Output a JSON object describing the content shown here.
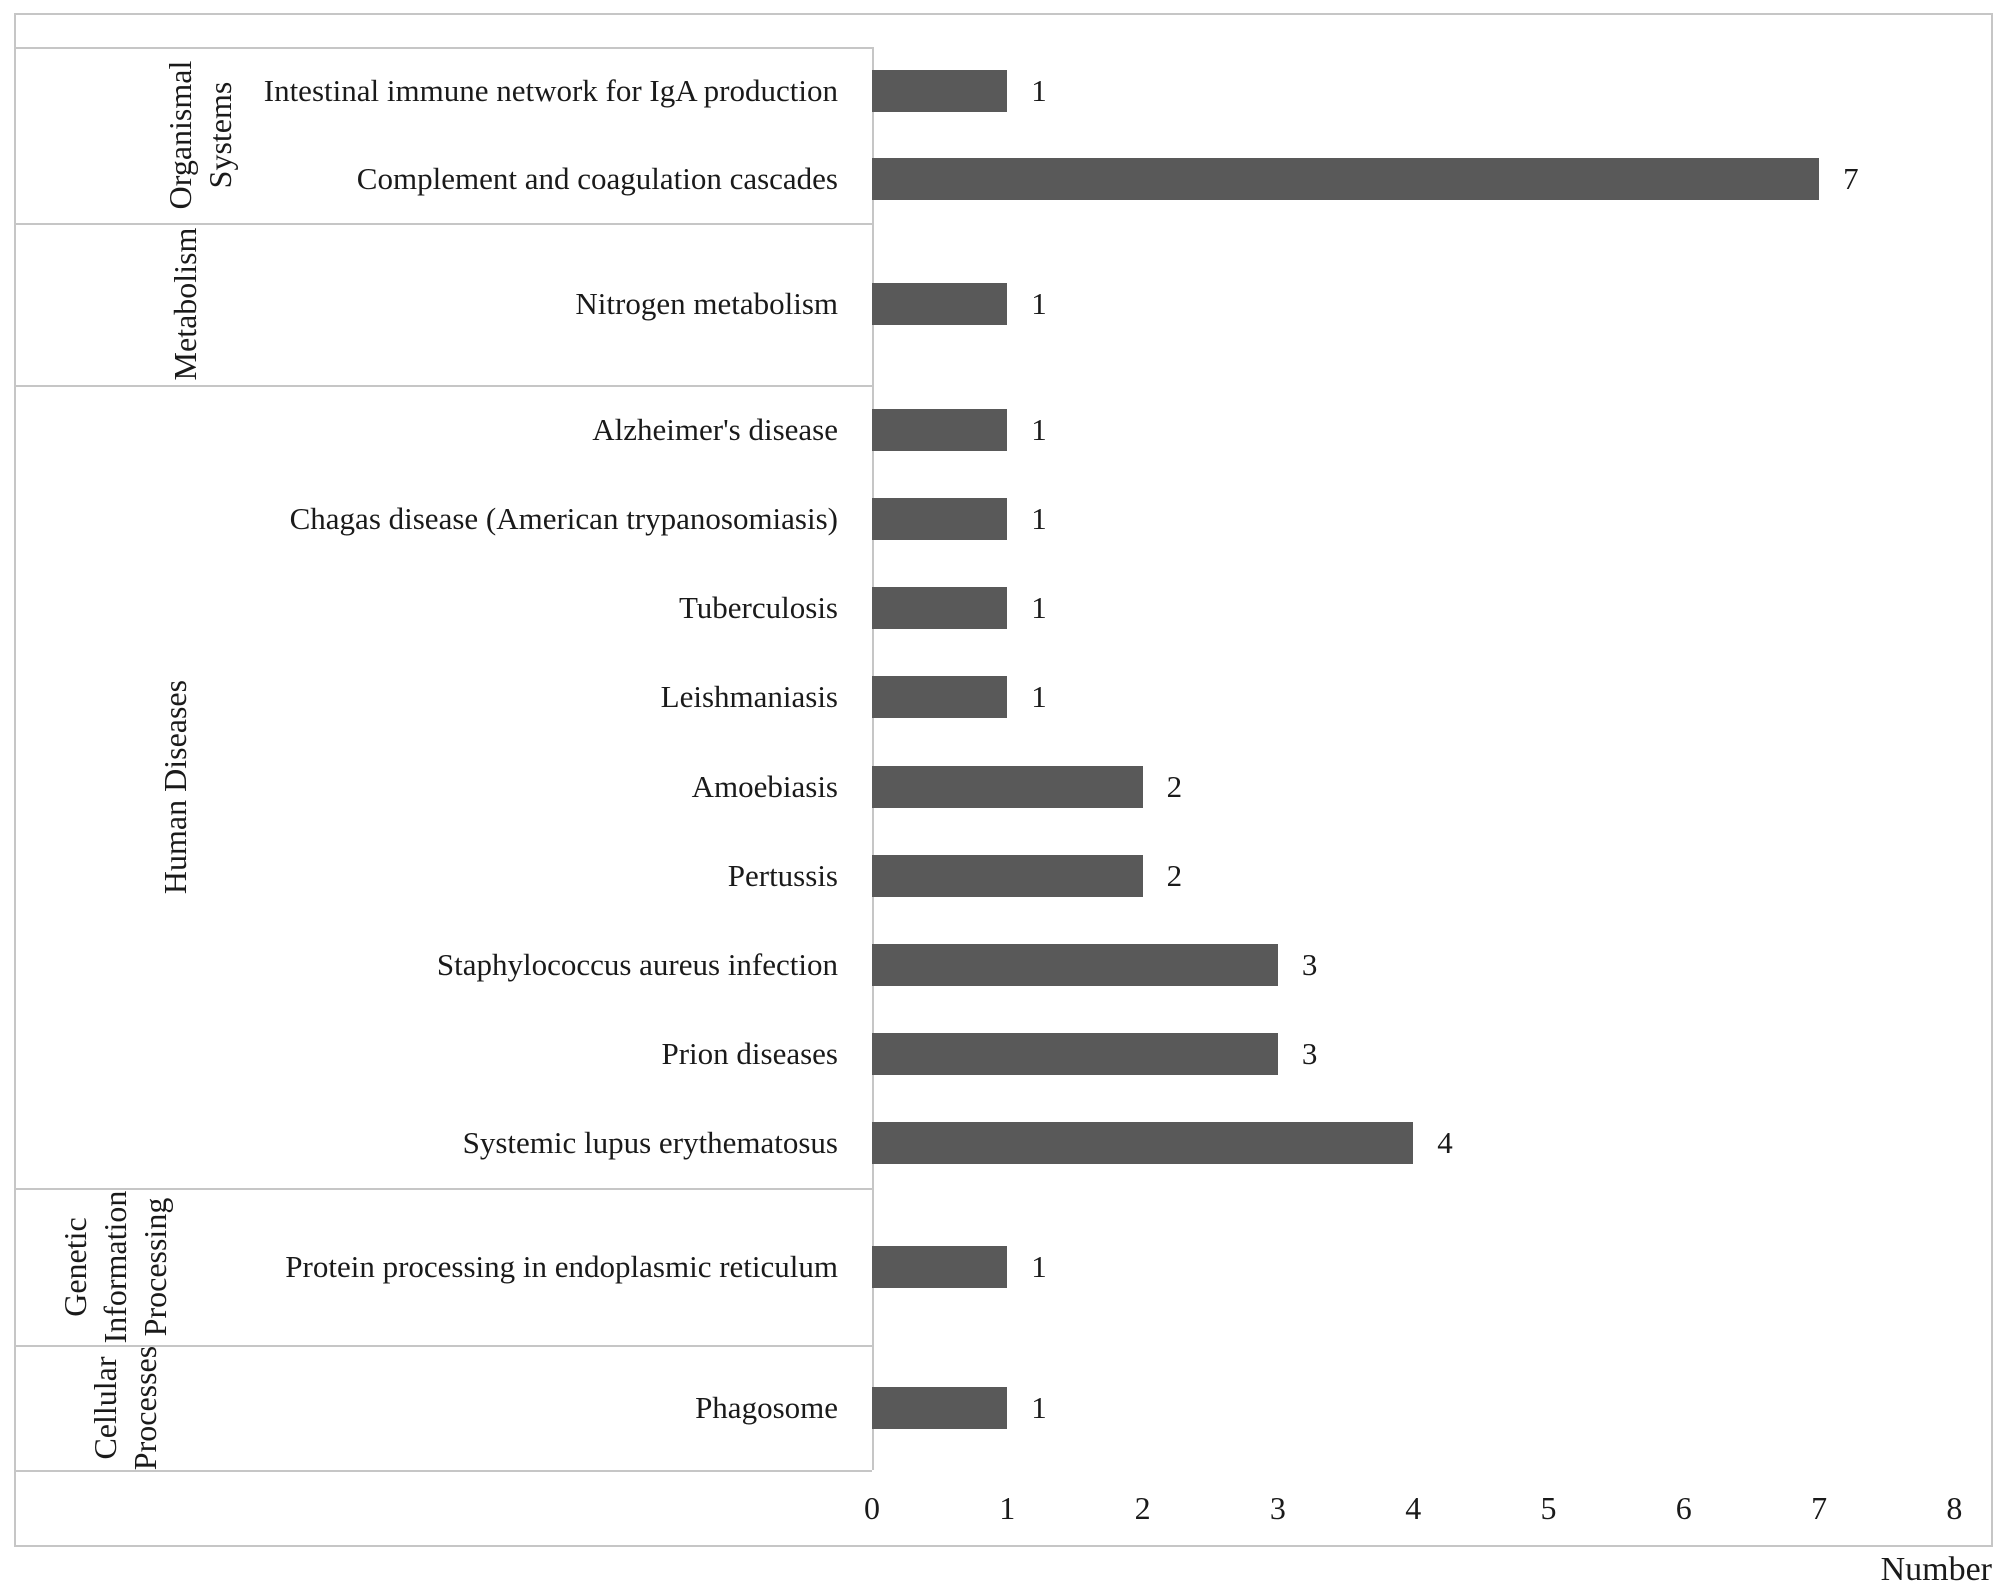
{
  "chart_data": {
    "type": "bar",
    "orientation": "horizontal",
    "title": "",
    "xlabel": "Number",
    "xlim": [
      0,
      8
    ],
    "x_ticks": [
      "0",
      "1",
      "2",
      "3",
      "4",
      "5",
      "6",
      "7",
      "8"
    ],
    "grid": false,
    "legend": false,
    "bar_color": "#595959",
    "colors": {
      "bar": "#595959",
      "grid": "#c6c6c6",
      "text": "#1a1a1a"
    },
    "groups": [
      {
        "category": "Organismal Systems",
        "rotated_label": "Organismal\nSystems",
        "pathways": [
          {
            "label": "Intestinal immune network for IgA production",
            "value": 1
          },
          {
            "label": "Complement and coagulation cascades",
            "value": 7
          }
        ]
      },
      {
        "category": "Metabolism",
        "rotated_label": "Metabolism",
        "pathways": [
          {
            "label": "Nitrogen metabolism",
            "value": 1
          }
        ]
      },
      {
        "category": "Human Diseases",
        "rotated_label": "Human Diseases",
        "pathways": [
          {
            "label": "Alzheimer's disease",
            "value": 1
          },
          {
            "label": "Chagas disease (American trypanosomiasis)",
            "value": 1
          },
          {
            "label": "Tuberculosis",
            "value": 1
          },
          {
            "label": "Leishmaniasis",
            "value": 1
          },
          {
            "label": "Amoebiasis",
            "value": 2
          },
          {
            "label": "Pertussis",
            "value": 2
          },
          {
            "label": "Staphylococcus aureus infection",
            "value": 3
          },
          {
            "label": "Prion diseases",
            "value": 3
          },
          {
            "label": "Systemic lupus erythematosus",
            "value": 4
          }
        ]
      },
      {
        "category": "Genetic Information Processing",
        "rotated_label": "Genetic\nInformation\nProcessing",
        "pathways": [
          {
            "label": "Protein processing in endoplasmic reticulum",
            "value": 1
          }
        ]
      },
      {
        "category": "Cellular Processes",
        "rotated_label": "Cellular\nProcesses",
        "pathways": [
          {
            "label": "Phagosome",
            "value": 1
          }
        ]
      }
    ]
  }
}
